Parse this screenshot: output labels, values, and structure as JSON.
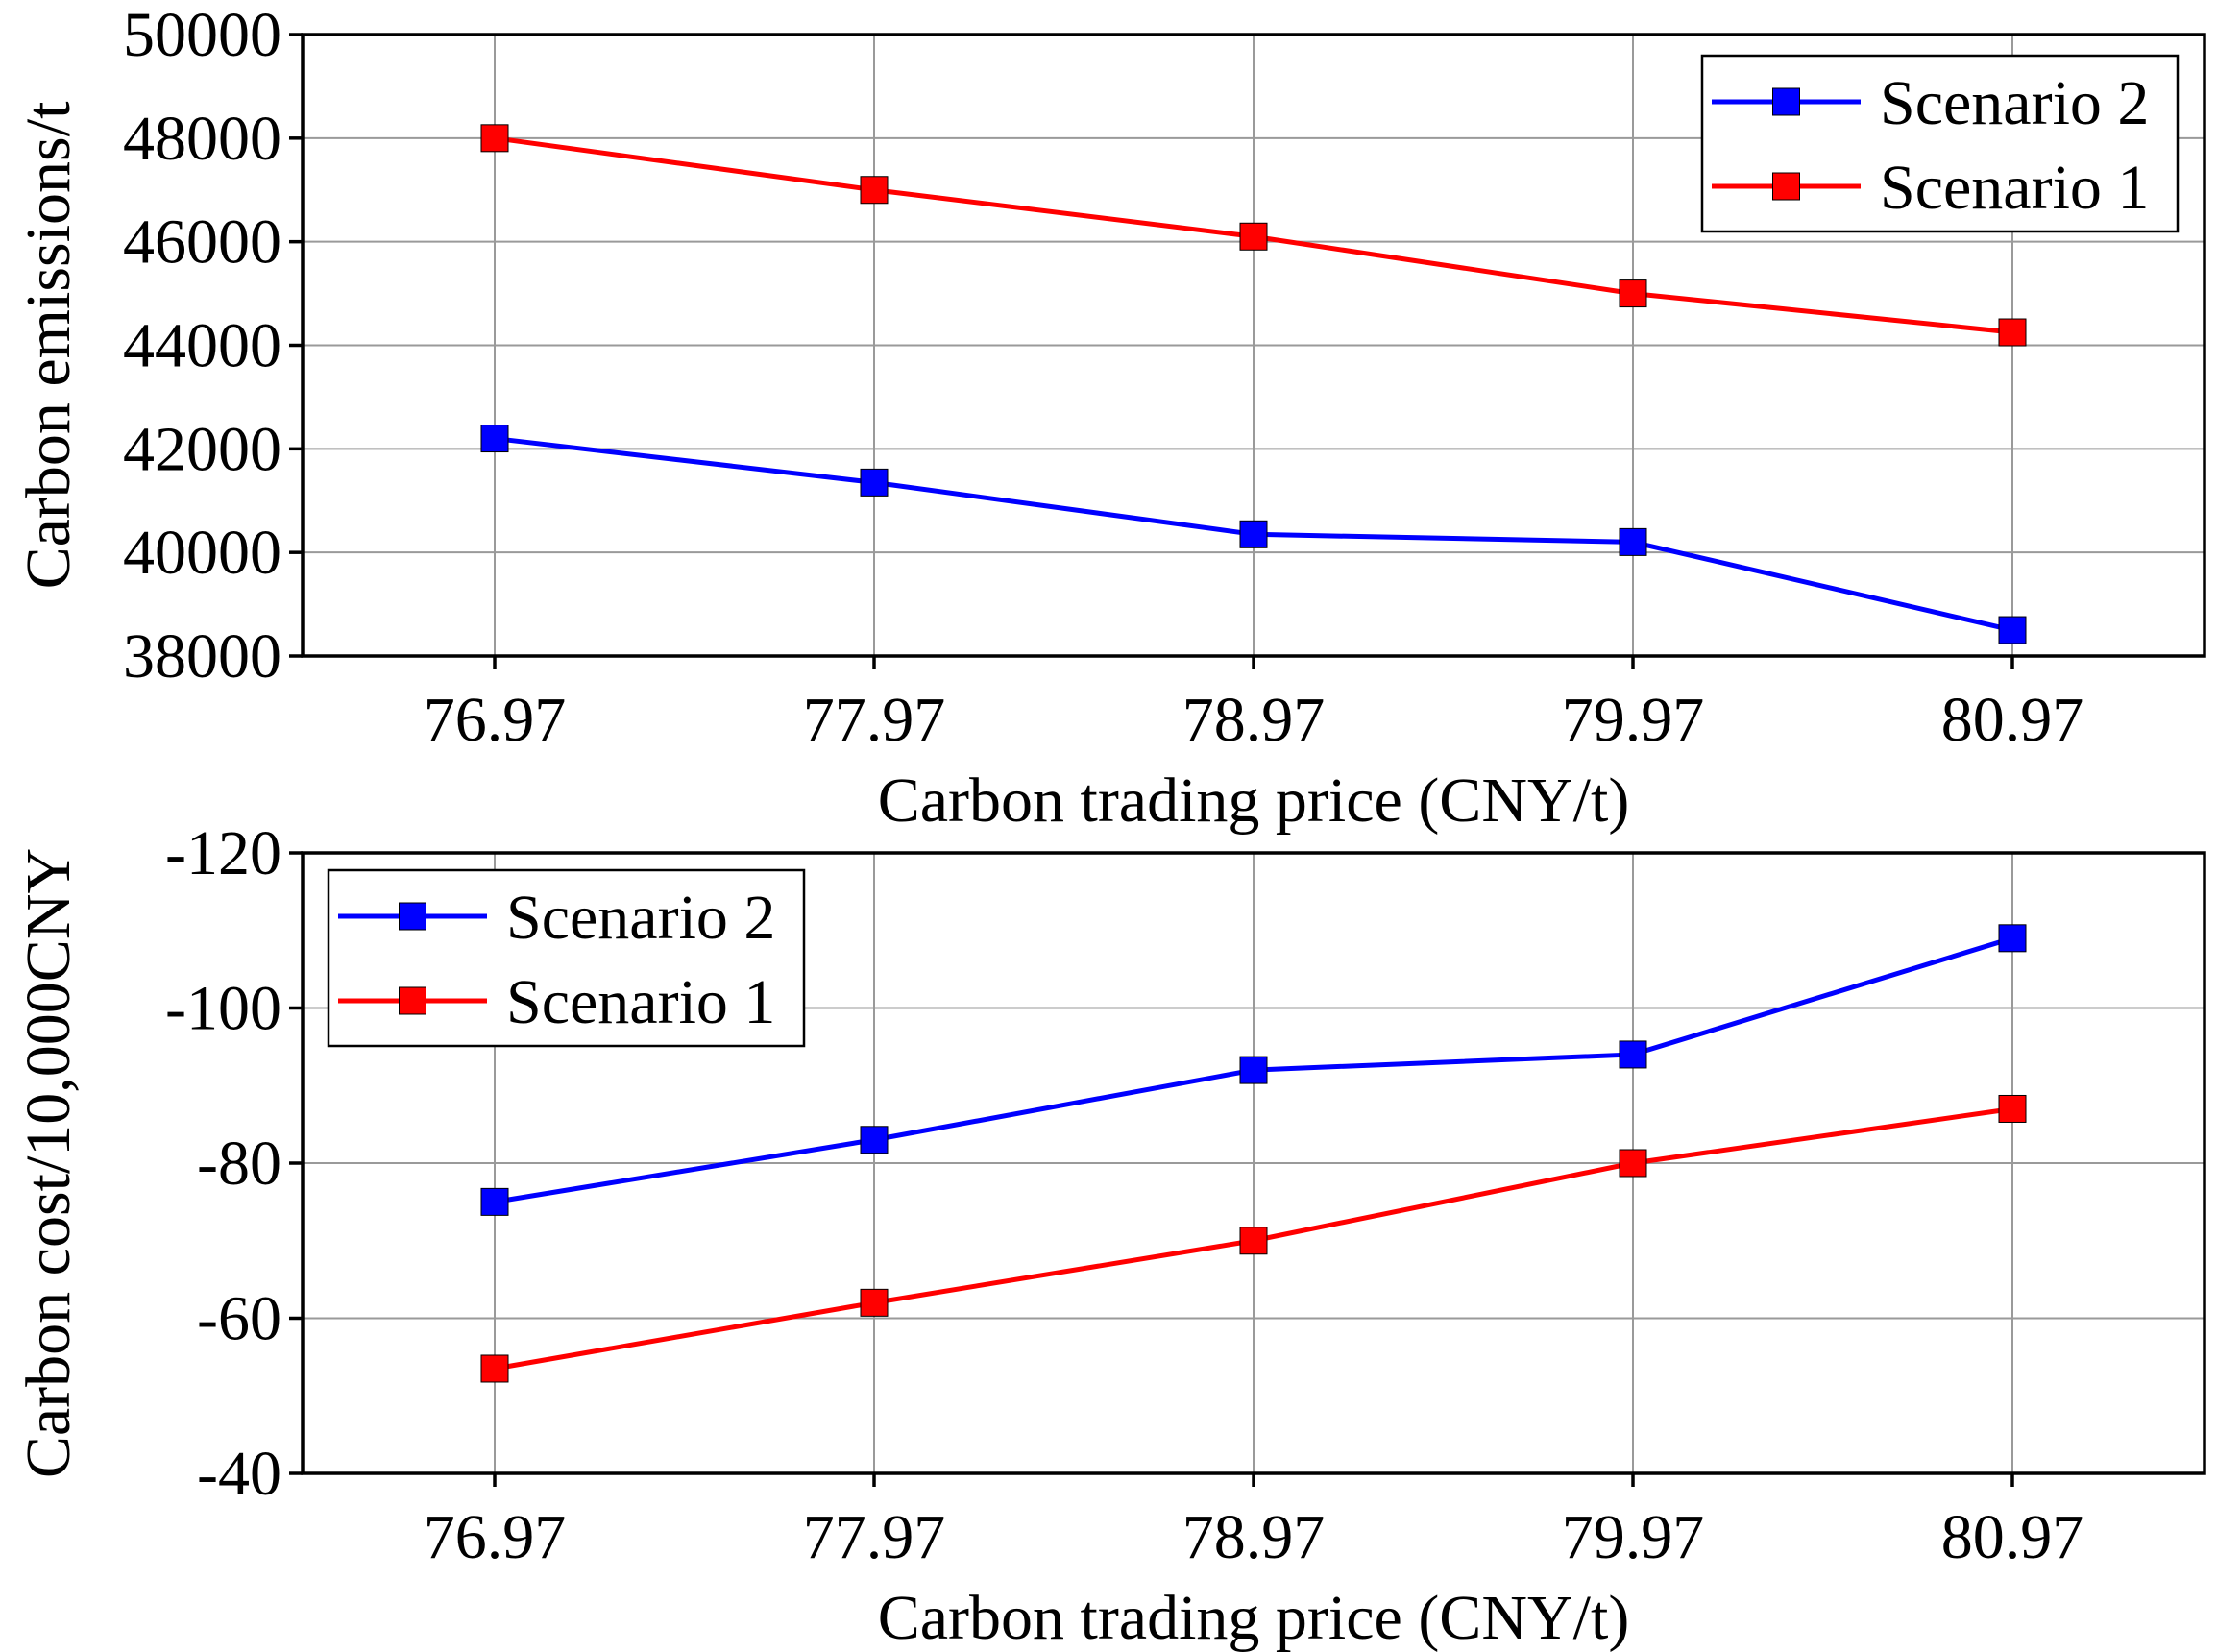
{
  "chart_data": [
    {
      "type": "line",
      "title": "",
      "xlabel": "Carbon trading price (CNY/t)",
      "ylabel": "Carbon emissions/t",
      "categories": [
        "76.97",
        "77.97",
        "78.97",
        "79.97",
        "80.97"
      ],
      "ylim": [
        38000,
        50000
      ],
      "yticks": [
        "38000",
        "40000",
        "42000",
        "44000",
        "46000",
        "48000",
        "50000"
      ],
      "ytick_values": [
        38000,
        40000,
        42000,
        44000,
        46000,
        48000,
        50000
      ],
      "y_reversed": false,
      "grid": true,
      "legend_position": "top-right",
      "series": [
        {
          "name": "Scenario 2",
          "color": "#0000ff",
          "values": [
            42200,
            41350,
            40350,
            40200,
            38500
          ]
        },
        {
          "name": "Scenario 1",
          "color": "#ff0000",
          "values": [
            48000,
            47000,
            46100,
            45000,
            44250
          ]
        }
      ]
    },
    {
      "type": "line",
      "title": "",
      "xlabel": "Carbon trading price (CNY/t)",
      "ylabel": "Carbon cost/10,000CNY",
      "categories": [
        "76.97",
        "77.97",
        "78.97",
        "79.97",
        "80.97"
      ],
      "ylim": [
        -40,
        -120
      ],
      "yticks": [
        "-40",
        "-60",
        "-80",
        "-100",
        "-120"
      ],
      "ytick_values": [
        -40,
        -60,
        -80,
        -100,
        -120
      ],
      "y_reversed": true,
      "grid": true,
      "legend_position": "top-left",
      "series": [
        {
          "name": "Scenario 2",
          "color": "#0000ff",
          "values": [
            -75,
            -83,
            -92,
            -94,
            -109
          ]
        },
        {
          "name": "Scenario 1",
          "color": "#ff0000",
          "values": [
            -53.5,
            -62,
            -70,
            -80,
            -87
          ]
        }
      ]
    }
  ]
}
